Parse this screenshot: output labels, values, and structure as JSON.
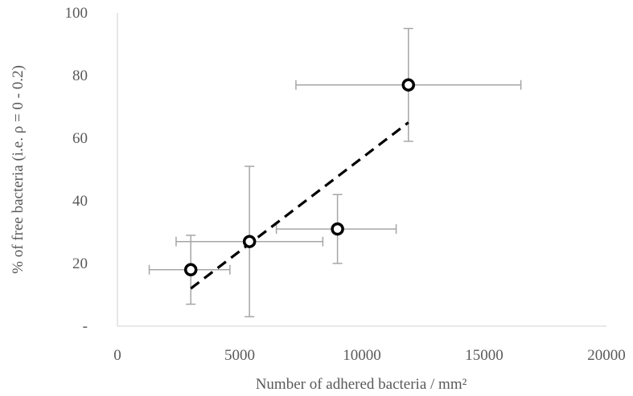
{
  "chart_data": {
    "type": "scatter",
    "title": "",
    "xlabel": "Number of adhered bacteria / mm²",
    "ylabel": "% of free bacteria (i.e. ρ  = 0 - 0.2)",
    "xlim": [
      0,
      20000
    ],
    "ylim": [
      0,
      100
    ],
    "x_ticks": [
      0,
      5000,
      10000,
      15000,
      20000
    ],
    "x_tick_labels": [
      "0",
      "5000",
      "10000",
      "15000",
      "20000"
    ],
    "y_ticks": [
      0,
      20,
      40,
      60,
      80,
      100
    ],
    "y_tick_labels": [
      "-",
      "20",
      "40",
      "60",
      "80",
      "100"
    ],
    "grid": false,
    "points": [
      {
        "x": 3000,
        "y": 18,
        "x_err_minus": 1700,
        "x_err_plus": 1600,
        "y_err_minus": 11,
        "y_err_plus": 11
      },
      {
        "x": 5400,
        "y": 27,
        "x_err_minus": 3000,
        "x_err_plus": 3000,
        "y_err_minus": 24,
        "y_err_plus": 24
      },
      {
        "x": 9000,
        "y": 31,
        "x_err_minus": 2500,
        "x_err_plus": 2400,
        "y_err_minus": 11,
        "y_err_plus": 11
      },
      {
        "x": 11900,
        "y": 77,
        "x_err_minus": 4600,
        "x_err_plus": 4600,
        "y_err_minus": 18,
        "y_err_plus": 18
      }
    ],
    "trendline": {
      "style": "dashed",
      "x": [
        3000,
        11900
      ],
      "y": [
        12,
        65
      ]
    },
    "colors": {
      "axis": "#d9d9d9",
      "error_bar": "#a6a6a6",
      "marker": "#000000",
      "trendline": "#000000",
      "text": "#595959"
    }
  }
}
